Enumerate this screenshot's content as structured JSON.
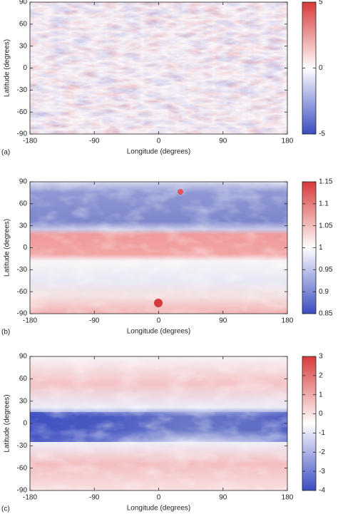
{
  "chart_data": [
    {
      "type": "heatmap",
      "panel_label": "(a)",
      "xlabel": "Longitude (degrees)",
      "ylabel": "Latitude (degrees)",
      "xlim": [
        -180,
        180
      ],
      "xticks": [
        -180,
        -90,
        0,
        90,
        180
      ],
      "ylim": [
        -90,
        90
      ],
      "yticks": [
        -90,
        -60,
        -30,
        0,
        30,
        60,
        90
      ],
      "clim": [
        -5,
        5
      ],
      "cticks": [
        -5,
        0,
        5
      ],
      "colormap": [
        "#3b4cc0",
        "#ffffff",
        "#d73a3a"
      ]
    },
    {
      "type": "heatmap",
      "panel_label": "(b)",
      "xlabel": "Longitude (degrees)",
      "ylabel": "Latitude (degrees)",
      "xlim": [
        -180,
        180
      ],
      "xticks": [
        -180,
        -90,
        0,
        90,
        180
      ],
      "ylim": [
        -90,
        90
      ],
      "yticks": [
        -90,
        -60,
        -30,
        0,
        30,
        60,
        90
      ],
      "clim": [
        0.85,
        1.15
      ],
      "cticks": [
        0.85,
        0.9,
        0.95,
        1,
        1.05,
        1.1,
        1.15
      ],
      "colormap": [
        "#3b4cc0",
        "#ffffff",
        "#d73a3a"
      ]
    },
    {
      "type": "heatmap",
      "panel_label": "(c)",
      "xlabel": "Longitude (degrees)",
      "ylabel": "Latitude (degrees)",
      "xlim": [
        -180,
        180
      ],
      "xticks": [
        -180,
        -90,
        0,
        90,
        180
      ],
      "ylim": [
        -90,
        90
      ],
      "yticks": [
        -90,
        -60,
        -30,
        0,
        30,
        60,
        90
      ],
      "clim": [
        -4,
        3
      ],
      "cticks": [
        -4,
        -3,
        -2,
        -1,
        0,
        1,
        2,
        3
      ],
      "colormap": [
        "#3b4cc0",
        "#ffffff",
        "#d73a3a"
      ]
    }
  ]
}
